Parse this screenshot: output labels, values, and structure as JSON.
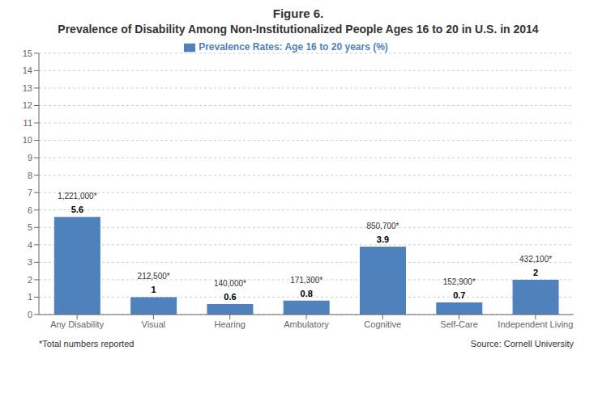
{
  "chart_data": {
    "type": "bar",
    "title": "Figure 6.",
    "subtitle": "Prevalence of Disability Among Non-Institutionalized People Ages 16 to 20 in U.S. in 2014",
    "categories": [
      "Any Disability",
      "Visual",
      "Hearing",
      "Ambulatory",
      "Cognitive",
      "Self-Care",
      "Independent Living"
    ],
    "series": [
      {
        "name": "Prevalence Rates: Age 16 to 20 years (%)",
        "color": "#4F81BD",
        "values": [
          5.6,
          1.0,
          0.6,
          0.8,
          3.9,
          0.7,
          2.0
        ],
        "totals": [
          "1,221,000*",
          "212,500*",
          "140,000*",
          "171,300*",
          "850,700*",
          "152,900*",
          "432,100*"
        ]
      }
    ],
    "ylim": [
      0,
      15
    ],
    "yticks": [
      0,
      1,
      2,
      3,
      4,
      5,
      6,
      7,
      8,
      9,
      10,
      11,
      12,
      13,
      14,
      15
    ],
    "grid": true,
    "legend": "top",
    "data_labels": true,
    "annotations": [
      "*Total numbers reported",
      "Source: Cornell University"
    ]
  }
}
